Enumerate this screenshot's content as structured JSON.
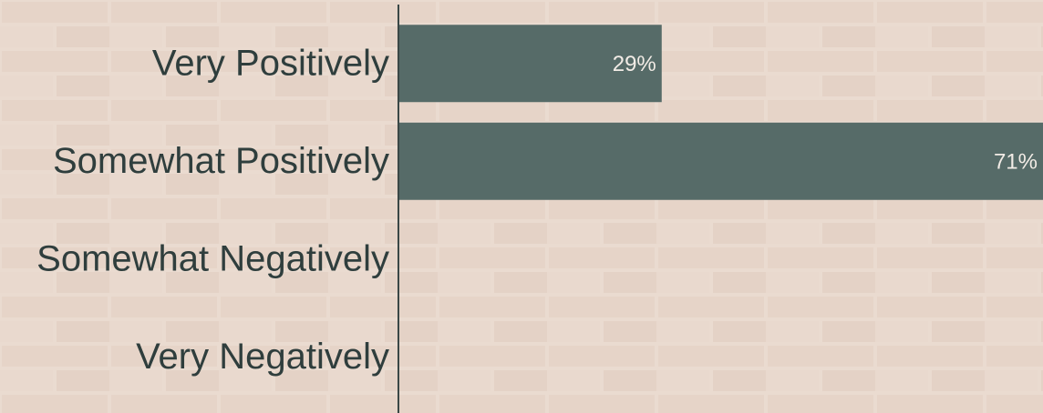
{
  "chart_data": {
    "type": "bar",
    "orientation": "horizontal",
    "categories": [
      "Very Positively",
      "Somewhat Positively",
      "Somewhat Negatively",
      "Very Negatively"
    ],
    "values": [
      29,
      71,
      0,
      0
    ],
    "value_labels": [
      "29%",
      "71%",
      null,
      null
    ],
    "color": "#566b68",
    "xlim": [
      0,
      71
    ]
  }
}
